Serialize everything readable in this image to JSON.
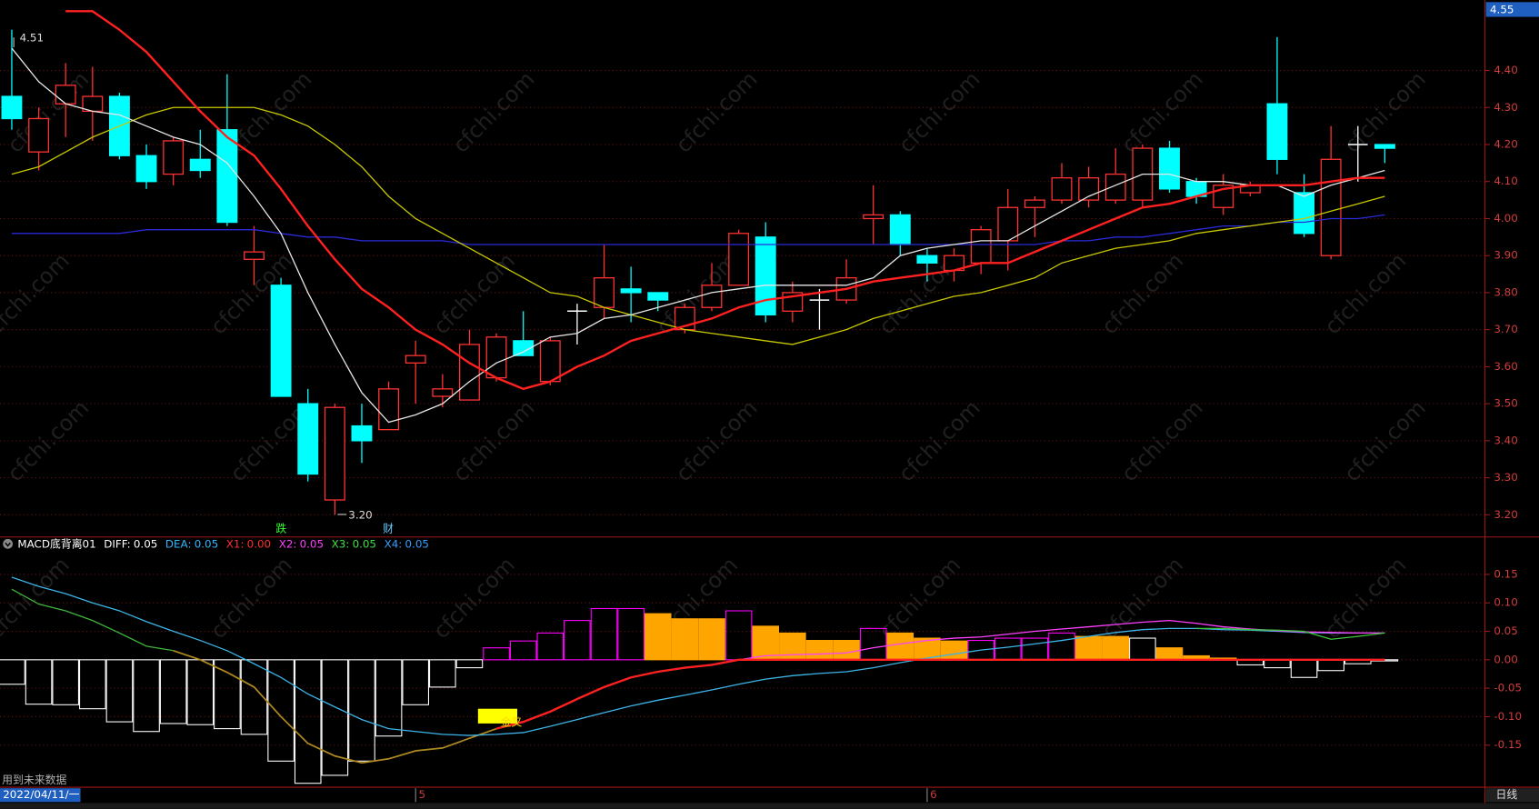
{
  "watermark": "cfchi.com",
  "footer": {
    "note": "用到未来数据",
    "date": "2022/04/11/一",
    "period": "日线"
  },
  "chart_data": [
    {
      "type": "candlestick",
      "categories": [
        null,
        null,
        null,
        null,
        null,
        null,
        null,
        null,
        null,
        null,
        null,
        null,
        null,
        null,
        null,
        "5",
        null,
        null,
        null,
        null,
        null,
        null,
        null,
        null,
        null,
        null,
        null,
        null,
        null,
        null,
        null,
        null,
        null,
        null,
        "6",
        null,
        null,
        null,
        null,
        null,
        null,
        null,
        null,
        null,
        null,
        null,
        null,
        null,
        null,
        null,
        null,
        null
      ],
      "open": [
        4.33,
        4.18,
        4.31,
        4.29,
        4.33,
        4.17,
        4.12,
        4.16,
        4.24,
        3.89,
        3.82,
        3.5,
        3.24,
        3.44,
        3.43,
        3.61,
        3.52,
        3.51,
        3.57,
        3.67,
        3.56,
        3.75,
        3.76,
        3.81,
        3.8,
        3.7,
        3.76,
        3.82,
        3.95,
        3.75,
        3.78,
        3.78,
        4.0,
        4.01,
        3.9,
        3.86,
        3.88,
        3.94,
        4.03,
        4.05,
        4.05,
        4.05,
        4.05,
        4.19,
        4.1,
        4.03,
        4.07,
        4.31,
        4.07,
        3.9,
        4.2,
        4.2
      ],
      "high": [
        4.51,
        4.3,
        4.42,
        4.41,
        4.34,
        4.2,
        4.22,
        4.24,
        4.39,
        3.98,
        3.84,
        3.54,
        3.5,
        3.5,
        3.56,
        3.67,
        3.58,
        3.7,
        3.69,
        3.75,
        3.68,
        3.77,
        3.93,
        3.87,
        3.8,
        3.77,
        3.88,
        3.97,
        3.99,
        3.83,
        3.81,
        3.89,
        4.09,
        4.02,
        3.92,
        3.92,
        3.98,
        4.08,
        4.06,
        4.15,
        4.14,
        4.19,
        4.2,
        4.21,
        4.11,
        4.12,
        4.1,
        4.49,
        4.12,
        4.25,
        4.25,
        4.2
      ],
      "low": [
        4.24,
        4.13,
        4.22,
        4.21,
        4.16,
        4.08,
        4.09,
        4.11,
        3.98,
        3.82,
        3.52,
        3.29,
        3.2,
        3.34,
        3.43,
        3.5,
        3.49,
        3.51,
        3.56,
        3.63,
        3.55,
        3.66,
        3.73,
        3.72,
        3.75,
        3.69,
        3.75,
        3.82,
        3.72,
        3.72,
        3.7,
        3.77,
        3.93,
        3.9,
        3.83,
        3.83,
        3.85,
        3.86,
        3.95,
        4.04,
        4.03,
        4.04,
        4.03,
        4.07,
        4.04,
        4.01,
        4.06,
        4.12,
        3.95,
        3.89,
        4.1,
        4.15
      ],
      "close": [
        4.27,
        4.27,
        4.36,
        4.33,
        4.17,
        4.1,
        4.21,
        4.13,
        3.99,
        3.91,
        3.52,
        3.31,
        3.49,
        3.4,
        3.54,
        3.63,
        3.54,
        3.66,
        3.68,
        3.63,
        3.67,
        3.75,
        3.84,
        3.8,
        3.78,
        3.76,
        3.82,
        3.96,
        3.74,
        3.8,
        3.78,
        3.84,
        4.01,
        3.93,
        3.88,
        3.9,
        3.97,
        4.03,
        4.05,
        4.11,
        4.11,
        4.12,
        4.19,
        4.08,
        4.06,
        4.09,
        4.09,
        4.16,
        3.96,
        4.16,
        4.2,
        4.19
      ],
      "up_color": "#ff3232",
      "down_color": "#00ffff",
      "flat_color": "#ffffff",
      "lines": [
        {
          "color": "#2a2ad8",
          "width": 1.2,
          "values": [
            3.96,
            3.96,
            3.96,
            3.96,
            3.96,
            3.97,
            3.97,
            3.97,
            3.97,
            3.97,
            3.96,
            3.95,
            3.95,
            3.94,
            3.94,
            3.94,
            3.94,
            3.93,
            3.93,
            3.93,
            3.93,
            3.93,
            3.93,
            3.93,
            3.93,
            3.93,
            3.93,
            3.93,
            3.93,
            3.93,
            3.93,
            3.93,
            3.93,
            3.93,
            3.93,
            3.93,
            3.93,
            3.93,
            3.93,
            3.94,
            3.94,
            3.95,
            3.95,
            3.96,
            3.97,
            3.98,
            3.98,
            3.99,
            3.99,
            4.0,
            4.0,
            4.01
          ]
        },
        {
          "color": "#c8c800",
          "width": 1.2,
          "values": [
            4.12,
            4.14,
            4.18,
            4.22,
            4.25,
            4.28,
            4.3,
            4.3,
            4.3,
            4.3,
            4.28,
            4.25,
            4.2,
            4.14,
            4.06,
            4.0,
            3.96,
            3.92,
            3.88,
            3.84,
            3.8,
            3.79,
            3.76,
            3.74,
            3.72,
            3.7,
            3.69,
            3.68,
            3.67,
            3.66,
            3.68,
            3.7,
            3.73,
            3.75,
            3.77,
            3.79,
            3.8,
            3.82,
            3.84,
            3.88,
            3.9,
            3.92,
            3.93,
            3.94,
            3.96,
            3.97,
            3.98,
            3.99,
            4.0,
            4.02,
            4.04,
            4.06
          ]
        },
        {
          "color": "#e6e6e6",
          "width": 1.2,
          "values": [
            4.46,
            4.37,
            4.31,
            4.29,
            4.28,
            4.25,
            4.22,
            4.2,
            4.15,
            4.06,
            3.96,
            3.8,
            3.66,
            3.53,
            3.45,
            3.47,
            3.5,
            3.56,
            3.61,
            3.64,
            3.68,
            3.69,
            3.73,
            3.74,
            3.76,
            3.78,
            3.8,
            3.81,
            3.82,
            3.82,
            3.82,
            3.82,
            3.84,
            3.9,
            3.92,
            3.93,
            3.94,
            3.94,
            3.98,
            4.02,
            4.06,
            4.09,
            4.12,
            4.12,
            4.1,
            4.1,
            4.09,
            4.09,
            4.06,
            4.09,
            4.11,
            4.13
          ]
        },
        {
          "color": "#ff2020",
          "width": 2.2,
          "values": [
            null,
            null,
            4.56,
            4.56,
            4.51,
            4.45,
            4.37,
            4.29,
            4.22,
            4.17,
            4.08,
            3.98,
            3.89,
            3.81,
            3.76,
            3.7,
            3.66,
            3.61,
            3.57,
            3.54,
            3.56,
            3.6,
            3.63,
            3.67,
            3.69,
            3.71,
            3.73,
            3.76,
            3.78,
            3.79,
            3.8,
            3.81,
            3.83,
            3.84,
            3.85,
            3.86,
            3.88,
            3.88,
            3.91,
            3.94,
            3.97,
            4.0,
            4.03,
            4.04,
            4.06,
            4.08,
            4.09,
            4.09,
            4.09,
            4.1,
            4.11,
            4.11
          ]
        }
      ],
      "ylim": [
        3.14,
        4.59
      ],
      "yticks": [
        {
          "value": 3.2,
          "label": "3.20"
        },
        {
          "value": 3.3,
          "label": "3.30"
        },
        {
          "value": 3.4,
          "label": "3.40"
        },
        {
          "value": 3.5,
          "label": "3.50"
        },
        {
          "value": 3.6,
          "label": "3.60"
        },
        {
          "value": 3.7,
          "label": "3.70"
        },
        {
          "value": 3.8,
          "label": "3.80"
        },
        {
          "value": 3.9,
          "label": "3.90"
        },
        {
          "value": 4.0,
          "label": "4.00"
        },
        {
          "value": 4.1,
          "label": "4.10"
        },
        {
          "value": 4.2,
          "label": "4.20"
        },
        {
          "value": 4.3,
          "label": "4.30"
        },
        {
          "value": 4.4,
          "label": "4.40"
        }
      ],
      "grid": true,
      "top_label": 4.55,
      "annotations": [
        "4.51",
        "3.20"
      ],
      "signals": [
        {
          "text": "跌",
          "color": "#33ff33"
        },
        {
          "text": "财",
          "color": "#66ccff"
        }
      ]
    },
    {
      "type": "bar",
      "title": "MACD底背离01",
      "legend_items": [
        {
          "label": "DIFF:",
          "value": 0.05,
          "color": "#ffffff"
        },
        {
          "label": "DEA:",
          "value": 0.05,
          "color": "#33b4ff"
        },
        {
          "label": "X1:",
          "value": 0,
          "value_label": "0.00",
          "color": "#ff3030"
        },
        {
          "label": "X2:",
          "value": 0.05,
          "color": "#ff40ff"
        },
        {
          "label": "X3:",
          "value": 0.05,
          "color": "#40e040"
        },
        {
          "label": "X4:",
          "value": 0.05,
          "color": "#33a0ff"
        }
      ],
      "values": [
        -0.043,
        -0.078,
        -0.079,
        -0.086,
        -0.109,
        -0.126,
        -0.112,
        -0.114,
        -0.121,
        -0.131,
        -0.178,
        -0.217,
        -0.203,
        -0.178,
        -0.134,
        -0.079,
        -0.048,
        -0.014,
        0.021,
        0.033,
        0.047,
        0.069,
        0.09,
        0.09,
        0.081,
        0.072,
        0.072,
        0.086,
        0.059,
        0.047,
        0.034,
        0.034,
        0.055,
        0.047,
        0.038,
        0.033,
        0.034,
        0.038,
        0.038,
        0.047,
        0.041,
        0.041,
        0.038,
        0.021,
        0.007,
        0.003,
        -0.009,
        -0.014,
        -0.031,
        -0.019,
        -0.007,
        -0.002
      ],
      "colors": [
        "#ffffff",
        "#ffffff",
        "#ffffff",
        "#ffffff",
        "#ffffff",
        "#ffffff",
        "#ffffff",
        "#ffffff",
        "#ffffff",
        "#ffffff",
        "#ffffff",
        "#ffffff",
        "#ffffff",
        "#ffffff",
        "#ffffff",
        "#ffffff",
        "#ffffff",
        "#ffffff",
        "#ff00ff",
        "#ff00ff",
        "#ff00ff",
        "#ff00ff",
        "#ff00ff",
        "#ff00ff",
        "#ffa500",
        "#ffa500",
        "#ffa500",
        "#ff00ff",
        "#ffa500",
        "#ffa500",
        "#ffa500",
        "#ffa500",
        "#ff00ff",
        "#ffa500",
        "#ffa500",
        "#ffa500",
        "#ff00ff",
        "#ff00ff",
        "#ff00ff",
        "#ff00ff",
        "#ffa500",
        "#ffa500",
        "#ffffff",
        "#ffa500",
        "#ffa500",
        "#ffa500",
        "#ffffff",
        "#ffffff",
        "#ffffff",
        "#ffffff",
        "#ffffff",
        "#ffffff"
      ],
      "filled_color": "#ffa500",
      "series": [
        {
          "color": "#3cb43c",
          "width": 1.2,
          "values": [
            0.124,
            0.098,
            0.086,
            0.069,
            0.047,
            0.024,
            0.016,
            null,
            null,
            null,
            null,
            null,
            null,
            null,
            null,
            null,
            null,
            null,
            null,
            null,
            null,
            null,
            null,
            null,
            null,
            null,
            null,
            null,
            null,
            null,
            null,
            null,
            null,
            null,
            null,
            null,
            null,
            null,
            null,
            null,
            null,
            null,
            null,
            null,
            null,
            null,
            null,
            null,
            null,
            null,
            null,
            null
          ]
        },
        {
          "color": "#b08a20",
          "width": 1.6,
          "values": [
            null,
            null,
            null,
            null,
            null,
            null,
            0.016,
            0,
            -0.022,
            -0.048,
            -0.1,
            -0.147,
            -0.169,
            -0.181,
            -0.174,
            -0.16,
            -0.155,
            -0.138,
            -0.121,
            null,
            null,
            null,
            null,
            null,
            null,
            null,
            null,
            null,
            null,
            null,
            null,
            null,
            null,
            null,
            null,
            null,
            null,
            null,
            null,
            null,
            null,
            null,
            null,
            null,
            null,
            null,
            null,
            null,
            null,
            null,
            null,
            null
          ]
        },
        {
          "color": "#3cb4e6",
          "width": 1.2,
          "values": [
            0.145,
            0.129,
            0.116,
            0.1,
            0.086,
            0.067,
            0.05,
            0.034,
            0.016,
            -0.007,
            -0.031,
            -0.06,
            -0.083,
            -0.105,
            -0.121,
            -0.126,
            -0.131,
            -0.133,
            -0.131,
            -0.128,
            -0.117,
            -0.105,
            -0.093,
            -0.081,
            -0.071,
            -0.062,
            -0.053,
            -0.043,
            -0.034,
            -0.028,
            -0.024,
            -0.021,
            -0.014,
            -0.005,
            0.003,
            0.01,
            0.017,
            0.022,
            0.028,
            0.034,
            0.041,
            0.048,
            0.053,
            0.055,
            0.055,
            0.053,
            0.052,
            0.05,
            0.048,
            0.047,
            0.047,
            0.047
          ]
        },
        {
          "color": "#ff40ff",
          "width": 1.2,
          "values": [
            null,
            null,
            null,
            null,
            null,
            null,
            null,
            null,
            null,
            null,
            null,
            null,
            null,
            null,
            null,
            null,
            null,
            null,
            null,
            null,
            null,
            null,
            null,
            null,
            null,
            null,
            null,
            0,
            0.007,
            0.009,
            0.01,
            0.012,
            0.021,
            0.028,
            0.034,
            0.038,
            0.04,
            0.045,
            0.05,
            0.054,
            0.058,
            0.062,
            0.066,
            0.069,
            0.064,
            0.058,
            0.054,
            0.051,
            0.049,
            0.048,
            0.047,
            0.047
          ]
        },
        {
          "color": "#3cc83c",
          "width": 1.2,
          "values": [
            null,
            null,
            null,
            null,
            null,
            null,
            null,
            null,
            null,
            null,
            null,
            null,
            null,
            null,
            null,
            null,
            null,
            null,
            null,
            null,
            null,
            null,
            null,
            null,
            null,
            null,
            null,
            null,
            null,
            null,
            null,
            null,
            null,
            null,
            null,
            null,
            null,
            null,
            null,
            null,
            null,
            null,
            null,
            null,
            0.055,
            0.055,
            0.053,
            0.052,
            0.05,
            0.036,
            0.041,
            0.047
          ]
        },
        {
          "color": "#ff2020",
          "width": 2.2,
          "values": [
            null,
            null,
            null,
            null,
            null,
            null,
            null,
            null,
            null,
            null,
            null,
            null,
            null,
            null,
            null,
            null,
            null,
            null,
            -0.121,
            -0.109,
            -0.091,
            -0.069,
            -0.048,
            -0.031,
            -0.021,
            -0.014,
            -0.009,
            0,
            0,
            0,
            0,
            0,
            0,
            0,
            0,
            0,
            0,
            0,
            0,
            0,
            0,
            0,
            0,
            0,
            0,
            0,
            0,
            0,
            0,
            0,
            0,
            0
          ]
        }
      ],
      "ylim": [
        -0.224,
        0.214
      ],
      "yticks": [
        {
          "value": -0.15,
          "label": "-0.15"
        },
        {
          "value": -0.1,
          "label": "-0.10"
        },
        {
          "value": -0.05,
          "label": "-0.05"
        },
        {
          "value": 0,
          "label": "0.00"
        },
        {
          "value": 0.05,
          "label": "0.05"
        },
        {
          "value": 0.1,
          "label": "0.10"
        },
        {
          "value": 0.15,
          "label": "0.15"
        }
      ],
      "grid": true,
      "cross_label": "金叉"
    }
  ]
}
